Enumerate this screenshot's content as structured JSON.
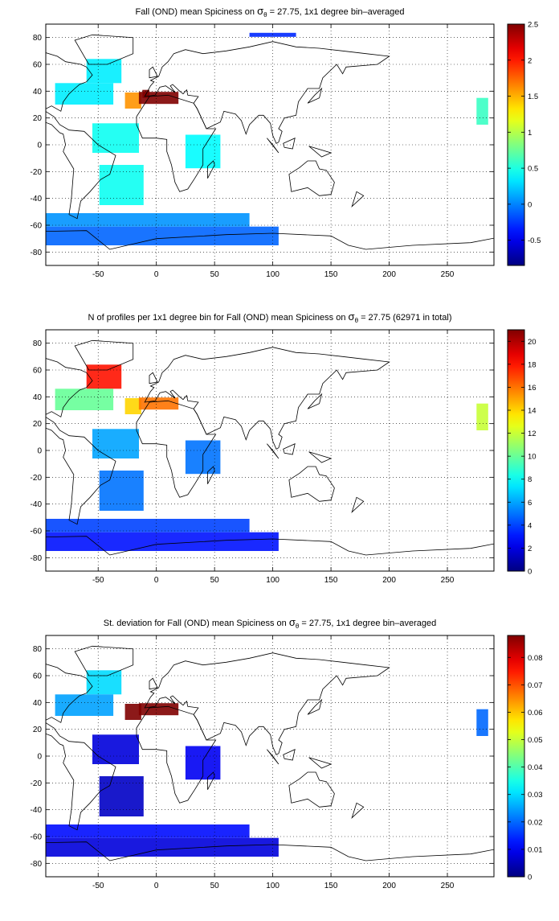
{
  "chart_data": [
    {
      "type": "heatmap",
      "title_parts": [
        "Fall (OND) mean Spiciness on ",
        "σ",
        "θ",
        " = 27.75, 1x1 degree bin–averaged"
      ],
      "xlim": [
        -95,
        290
      ],
      "ylim": [
        -90,
        90
      ],
      "xticks": [
        -50,
        0,
        50,
        100,
        150,
        200,
        250
      ],
      "yticks": [
        -80,
        -60,
        -40,
        -20,
        0,
        20,
        40,
        60,
        80
      ],
      "grid": "dotted",
      "colorbar": {
        "min": -0.85,
        "max": 2.5,
        "ticks": [
          -0.5,
          0,
          0.5,
          1,
          1.5,
          2,
          2.5
        ]
      },
      "bins": [
        {
          "x": -45,
          "y": 55,
          "w": 30,
          "h": 18,
          "value": 0.35
        },
        {
          "x": -62,
          "y": 38,
          "w": 50,
          "h": 16,
          "value": 0.35
        },
        {
          "x": -20,
          "y": 33,
          "w": 14,
          "h": 12,
          "value": 1.6
        },
        {
          "x": -9,
          "y": 38,
          "w": 6,
          "h": 6,
          "value": 2.5
        },
        {
          "x": 2,
          "y": 35,
          "w": 34,
          "h": 9,
          "value": 2.5
        },
        {
          "x": -35,
          "y": 5,
          "w": 40,
          "h": 22,
          "value": 0.45
        },
        {
          "x": -30,
          "y": -30,
          "w": 38,
          "h": 30,
          "value": 0.45
        },
        {
          "x": 40,
          "y": -5,
          "w": 30,
          "h": 25,
          "value": 0.4
        },
        {
          "x": -60,
          "y": -68,
          "w": 330,
          "h": 14,
          "value": -0.1
        },
        {
          "x": -40,
          "y": -56,
          "w": 240,
          "h": 10,
          "value": 0.05
        },
        {
          "x": 280,
          "y": 25,
          "w": 10,
          "h": 20,
          "value": 0.6
        },
        {
          "x": 100,
          "y": 82,
          "w": 40,
          "h": 3,
          "value": -0.3
        }
      ]
    },
    {
      "type": "heatmap",
      "title_parts": [
        "N of profiles per 1x1 degree bin for Fall (OND) mean Spiciness on ",
        "σ",
        "θ",
        " = 27.75 (62971 in total)"
      ],
      "xlim": [
        -95,
        290
      ],
      "ylim": [
        -90,
        90
      ],
      "xticks": [
        -50,
        0,
        50,
        100,
        150,
        200,
        250
      ],
      "yticks": [
        -80,
        -60,
        -40,
        -20,
        0,
        20,
        40,
        60,
        80
      ],
      "grid": "dotted",
      "colorbar": {
        "min": 0,
        "max": 21,
        "ticks": [
          0,
          2,
          4,
          6,
          8,
          10,
          12,
          14,
          16,
          18,
          20
        ]
      },
      "bins": [
        {
          "x": -45,
          "y": 55,
          "w": 30,
          "h": 18,
          "value": 18
        },
        {
          "x": -62,
          "y": 38,
          "w": 50,
          "h": 16,
          "value": 10
        },
        {
          "x": -20,
          "y": 33,
          "w": 14,
          "h": 12,
          "value": 14
        },
        {
          "x": 2,
          "y": 35,
          "w": 34,
          "h": 9,
          "value": 16
        },
        {
          "x": -35,
          "y": 5,
          "w": 40,
          "h": 22,
          "value": 6
        },
        {
          "x": -30,
          "y": -30,
          "w": 38,
          "h": 30,
          "value": 5
        },
        {
          "x": 40,
          "y": -5,
          "w": 30,
          "h": 25,
          "value": 5
        },
        {
          "x": -60,
          "y": -68,
          "w": 330,
          "h": 14,
          "value": 3
        },
        {
          "x": -40,
          "y": -56,
          "w": 240,
          "h": 10,
          "value": 4
        },
        {
          "x": 280,
          "y": 25,
          "w": 10,
          "h": 20,
          "value": 12
        }
      ]
    },
    {
      "type": "heatmap",
      "title_parts": [
        "St. deviation for Fall (OND) mean Spiciness on ",
        "σ",
        "θ",
        " = 27.75, 1x1 degree bin–averaged"
      ],
      "xlim": [
        -95,
        290
      ],
      "ylim": [
        -90,
        90
      ],
      "xticks": [
        -50,
        0,
        50,
        100,
        150,
        200,
        250
      ],
      "yticks": [
        -80,
        -60,
        -40,
        -20,
        0,
        20,
        40,
        60,
        80
      ],
      "grid": "dotted",
      "colorbar": {
        "min": 0,
        "max": 0.088,
        "ticks": [
          0,
          0.01,
          0.02,
          0.03,
          0.04,
          0.05,
          0.06,
          0.07,
          0.08
        ]
      },
      "bins": [
        {
          "x": -45,
          "y": 55,
          "w": 30,
          "h": 18,
          "value": 0.03
        },
        {
          "x": -62,
          "y": 38,
          "w": 50,
          "h": 16,
          "value": 0.025
        },
        {
          "x": -20,
          "y": 33,
          "w": 14,
          "h": 12,
          "value": 0.088
        },
        {
          "x": 2,
          "y": 35,
          "w": 34,
          "h": 9,
          "value": 0.088
        },
        {
          "x": -35,
          "y": 5,
          "w": 40,
          "h": 22,
          "value": 0.008
        },
        {
          "x": -30,
          "y": -30,
          "w": 38,
          "h": 30,
          "value": 0.006
        },
        {
          "x": 40,
          "y": -5,
          "w": 30,
          "h": 25,
          "value": 0.01
        },
        {
          "x": -60,
          "y": -68,
          "w": 330,
          "h": 14,
          "value": 0.008
        },
        {
          "x": -40,
          "y": -56,
          "w": 240,
          "h": 10,
          "value": 0.012
        },
        {
          "x": 280,
          "y": 25,
          "w": 10,
          "h": 20,
          "value": 0.02
        }
      ]
    }
  ],
  "coastlines": [
    [
      [
        -165,
        65
      ],
      [
        -140,
        60
      ],
      [
        -125,
        48
      ],
      [
        -117,
        32
      ],
      [
        -105,
        20
      ],
      [
        -90,
        15
      ],
      [
        -83,
        9
      ],
      [
        -80,
        8
      ],
      [
        -78,
        0
      ],
      [
        -80,
        -5
      ],
      [
        -71,
        -18
      ],
      [
        -73,
        -40
      ],
      [
        -75,
        -52
      ],
      [
        -68,
        -55
      ],
      [
        -65,
        -42
      ],
      [
        -57,
        -35
      ],
      [
        -48,
        -26
      ],
      [
        -40,
        -22
      ],
      [
        -35,
        -8
      ],
      [
        -50,
        0
      ],
      [
        -62,
        10
      ],
      [
        -75,
        11
      ],
      [
        -83,
        15
      ],
      [
        -88,
        21
      ],
      [
        -97,
        26
      ],
      [
        -90,
        29
      ],
      [
        -82,
        25
      ],
      [
        -80,
        32
      ],
      [
        -75,
        38
      ],
      [
        -70,
        42
      ],
      [
        -66,
        45
      ],
      [
        -60,
        47
      ],
      [
        -55,
        52
      ],
      [
        -60,
        58
      ],
      [
        -65,
        60
      ],
      [
        -78,
        62
      ],
      [
        -85,
        66
      ],
      [
        -100,
        70
      ],
      [
        -125,
        70
      ],
      [
        -150,
        71
      ],
      [
        -165,
        65
      ]
    ],
    [
      [
        -58,
        60
      ],
      [
        -42,
        60
      ],
      [
        -20,
        68
      ],
      [
        -20,
        80
      ],
      [
        -55,
        82
      ],
      [
        -70,
        78
      ],
      [
        -58,
        60
      ]
    ],
    [
      [
        -10,
        36
      ],
      [
        -5,
        44
      ],
      [
        -2,
        47
      ],
      [
        -5,
        48
      ],
      [
        2,
        51
      ],
      [
        5,
        58
      ],
      [
        10,
        62
      ],
      [
        15,
        68
      ],
      [
        25,
        71
      ],
      [
        40,
        68
      ],
      [
        60,
        70
      ],
      [
        80,
        73
      ],
      [
        100,
        77
      ],
      [
        120,
        73
      ],
      [
        140,
        72
      ],
      [
        160,
        70
      ],
      [
        180,
        68
      ],
      [
        200,
        66
      ],
      [
        190,
        60
      ],
      [
        163,
        58
      ],
      [
        160,
        53
      ],
      [
        155,
        60
      ],
      [
        143,
        50
      ],
      [
        140,
        42
      ],
      [
        130,
        42
      ],
      [
        126,
        37
      ],
      [
        122,
        32
      ],
      [
        120,
        22
      ],
      [
        110,
        20
      ],
      [
        105,
        12
      ],
      [
        108,
        10
      ],
      [
        105,
        2
      ],
      [
        103,
        1
      ],
      [
        100,
        7
      ],
      [
        98,
        16
      ],
      [
        92,
        22
      ],
      [
        88,
        22
      ],
      [
        80,
        15
      ],
      [
        77,
        8
      ],
      [
        73,
        18
      ],
      [
        68,
        23
      ],
      [
        58,
        25
      ],
      [
        55,
        17
      ],
      [
        43,
        12
      ],
      [
        35,
        27
      ],
      [
        32,
        31
      ],
      [
        36,
        36
      ],
      [
        27,
        37
      ],
      [
        26,
        41
      ],
      [
        23,
        38
      ],
      [
        20,
        40
      ],
      [
        14,
        45
      ],
      [
        12,
        44
      ],
      [
        16,
        39
      ],
      [
        8,
        44
      ],
      [
        3,
        43
      ],
      [
        -1,
        37
      ],
      [
        -10,
        36
      ]
    ],
    [
      [
        -17,
        21
      ],
      [
        -17,
        15
      ],
      [
        -12,
        5
      ],
      [
        0,
        5
      ],
      [
        9,
        4
      ],
      [
        9,
        -5
      ],
      [
        13,
        -15
      ],
      [
        16,
        -28
      ],
      [
        20,
        -35
      ],
      [
        27,
        -33
      ],
      [
        33,
        -25
      ],
      [
        40,
        -15
      ],
      [
        40,
        -3
      ],
      [
        51,
        12
      ],
      [
        43,
        12
      ],
      [
        35,
        27
      ],
      [
        32,
        31
      ],
      [
        10,
        37
      ],
      [
        -6,
        36
      ],
      [
        -17,
        21
      ]
    ],
    [
      [
        114,
        -22
      ],
      [
        123,
        -17
      ],
      [
        130,
        -12
      ],
      [
        137,
        -12
      ],
      [
        140,
        -18
      ],
      [
        146,
        -19
      ],
      [
        153,
        -28
      ],
      [
        150,
        -37
      ],
      [
        140,
        -38
      ],
      [
        130,
        -32
      ],
      [
        116,
        -35
      ],
      [
        114,
        -22
      ]
    ],
    [
      [
        -180,
        -66
      ],
      [
        -60,
        -64
      ],
      [
        -40,
        -78
      ],
      [
        0,
        -70
      ],
      [
        60,
        -67
      ],
      [
        100,
        -66
      ],
      [
        150,
        -68
      ],
      [
        165,
        -75
      ],
      [
        180,
        -78
      ],
      [
        220,
        -75
      ],
      [
        270,
        -73
      ],
      [
        300,
        -68
      ],
      [
        300,
        -90
      ],
      [
        -180,
        -90
      ],
      [
        -180,
        -66
      ]
    ],
    [
      [
        -6,
        50
      ],
      [
        1,
        51
      ],
      [
        -3,
        58
      ],
      [
        -6,
        56
      ],
      [
        -6,
        50
      ]
    ],
    [
      [
        44,
        -25
      ],
      [
        50,
        -15
      ],
      [
        49,
        -12
      ],
      [
        44,
        -16
      ],
      [
        44,
        -25
      ]
    ],
    [
      [
        130,
        31
      ],
      [
        140,
        35
      ],
      [
        142,
        42
      ],
      [
        136,
        37
      ],
      [
        130,
        31
      ]
    ],
    [
      [
        95,
        5
      ],
      [
        105,
        -6
      ],
      [
        100,
        0
      ],
      [
        95,
        5
      ]
    ],
    [
      [
        109,
        1
      ],
      [
        119,
        5
      ],
      [
        117,
        -3
      ],
      [
        110,
        -2
      ],
      [
        109,
        1
      ]
    ],
    [
      [
        131,
        -1
      ],
      [
        150,
        -6
      ],
      [
        142,
        -9
      ],
      [
        131,
        -1
      ]
    ],
    [
      [
        172,
        -35
      ],
      [
        178,
        -38
      ],
      [
        168,
        -46
      ],
      [
        172,
        -35
      ]
    ]
  ]
}
